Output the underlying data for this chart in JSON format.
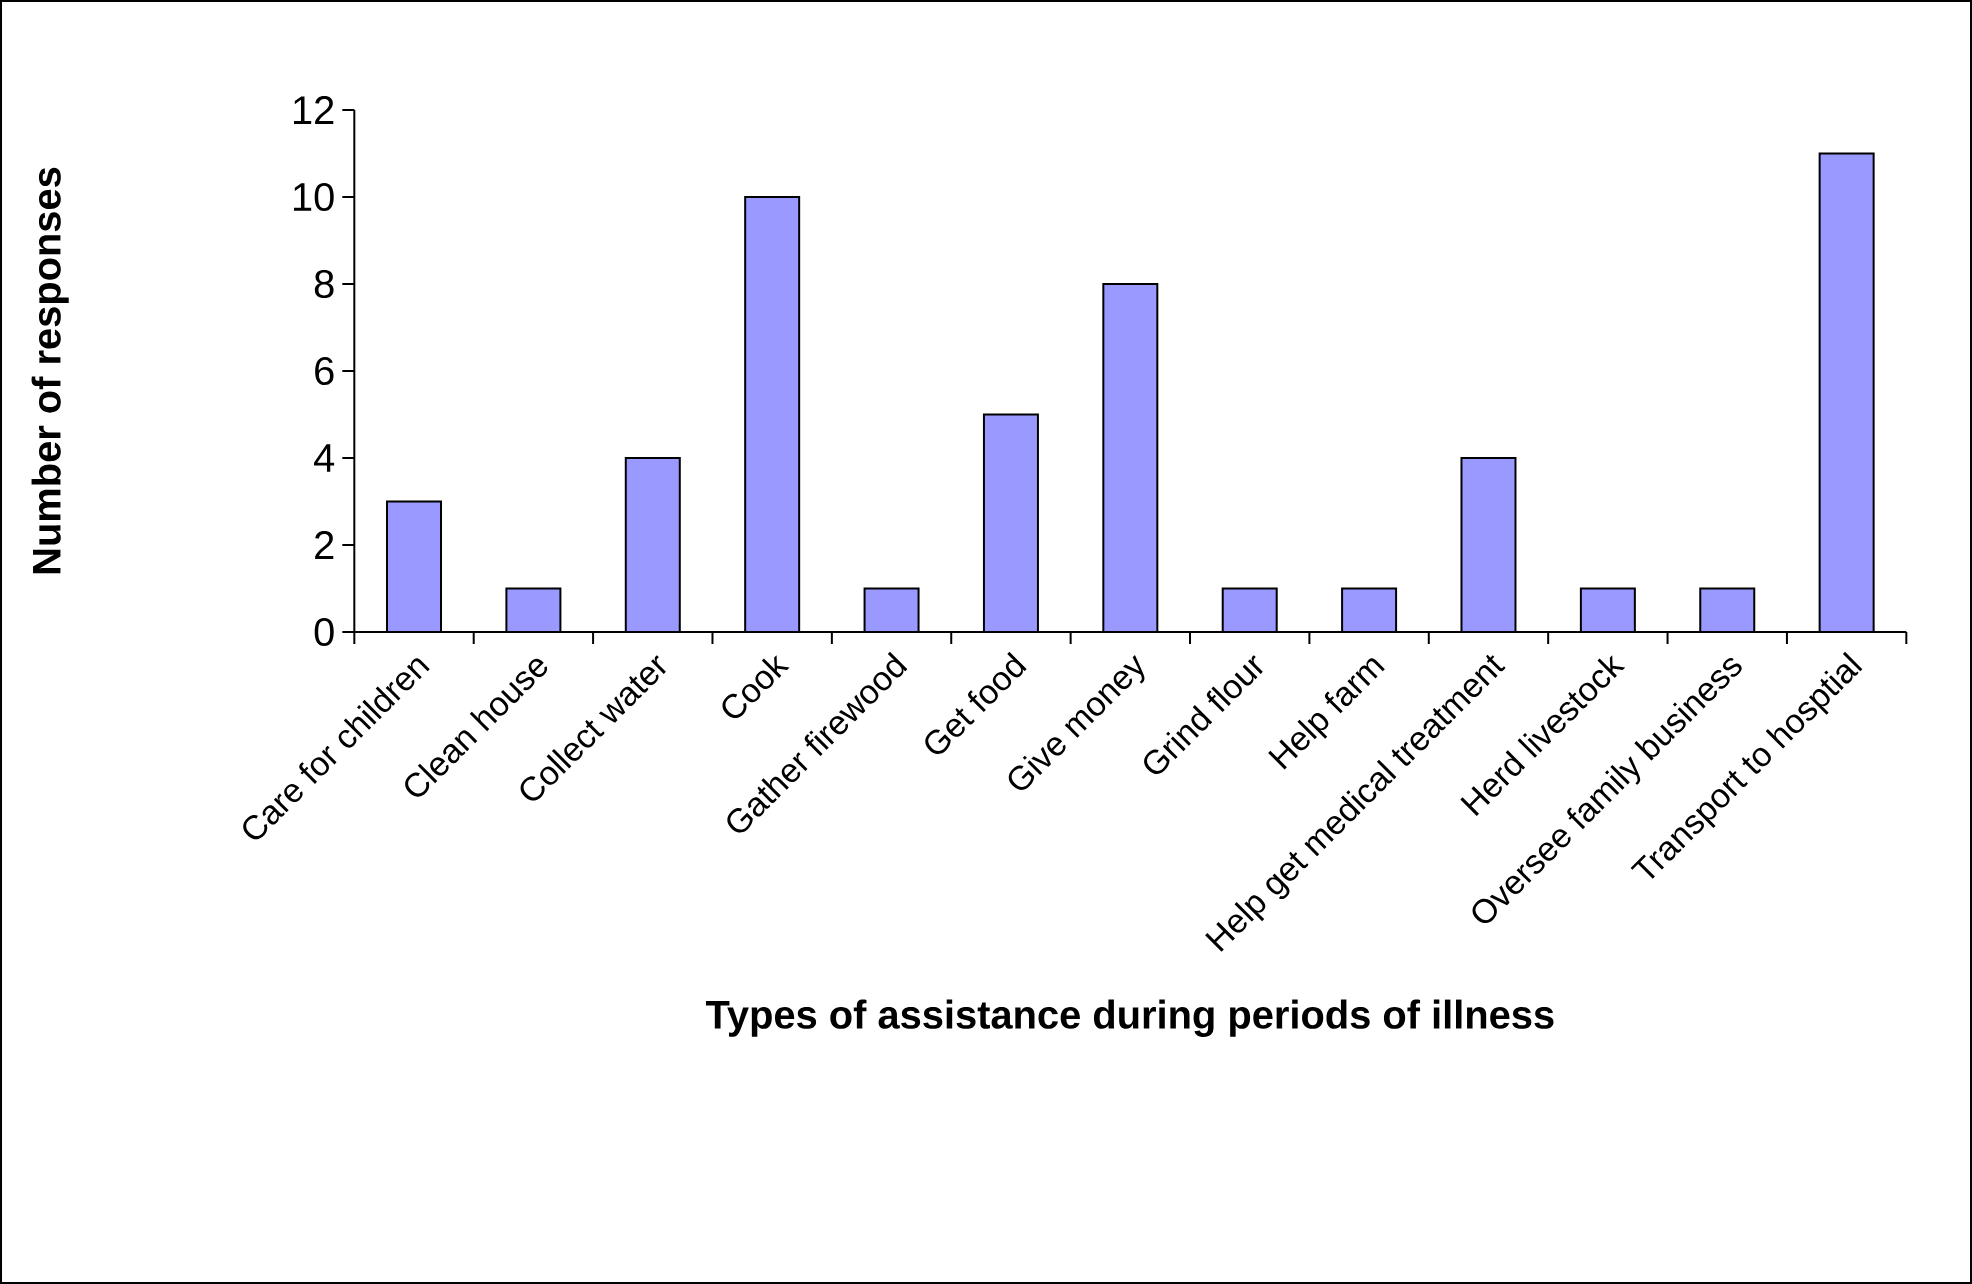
{
  "chart_data": {
    "type": "bar",
    "xlabel": "Types of assistance during periods of illness",
    "ylabel": "Number of responses",
    "categories": [
      "Care for children",
      "Clean house",
      "Collect water",
      "Cook",
      "Gather firewood",
      "Get food",
      "Give money",
      "Grind flour",
      "Help farm",
      "Help get medical treatment",
      "Herd livestock",
      "Oversee family business",
      "Transport to hosptial"
    ],
    "values": [
      3,
      1,
      4,
      10,
      1,
      5,
      8,
      1,
      1,
      4,
      1,
      1,
      11
    ],
    "color": "#9999ff",
    "ylim": [
      0,
      12
    ],
    "yticks": [
      0,
      2,
      4,
      6,
      8,
      10,
      12
    ]
  }
}
